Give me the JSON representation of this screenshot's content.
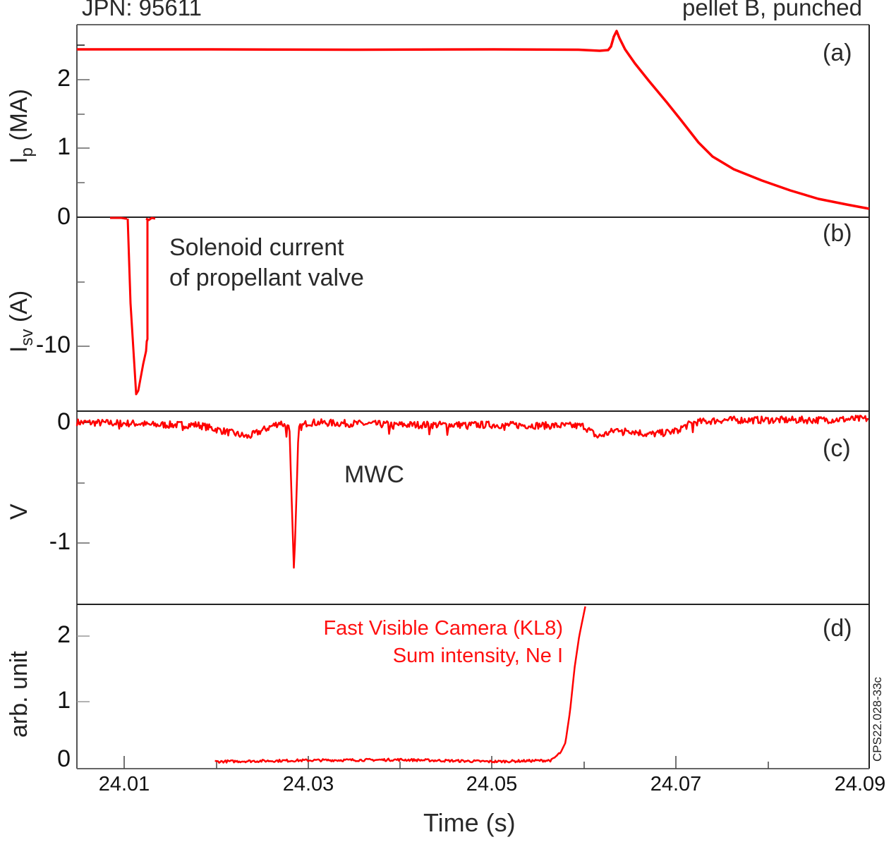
{
  "header": {
    "left": "JPN: 95611",
    "right": "pellet B, punched"
  },
  "figure_id": "CPS22.028-33c",
  "x_axis": {
    "label": "Time (s)",
    "ticks": [
      "24.01",
      "24.03",
      "24.05",
      "24.07",
      "24.09"
    ]
  },
  "panels": [
    {
      "id": "a",
      "tag": "(a)",
      "ylabel_main": "I",
      "ylabel_sub": "p",
      "ylabel_unit": " (MA)",
      "yticks": [
        "2",
        "1",
        "0"
      ]
    },
    {
      "id": "b",
      "tag": "(b)",
      "ylabel_main": "I",
      "ylabel_sub": "sv",
      "ylabel_unit": " (A)",
      "yticks": [
        "0",
        "-10"
      ],
      "annotation": [
        "Solenoid current",
        "of propellant valve"
      ]
    },
    {
      "id": "c",
      "tag": "(c)",
      "ylabel_main": "V",
      "yticks": [
        "0",
        "-1"
      ],
      "annotation": [
        "MWC"
      ]
    },
    {
      "id": "d",
      "tag": "(d)",
      "ylabel_main": "arb. unit",
      "yticks": [
        "2",
        "1",
        "0"
      ],
      "annotation": [
        "Fast Visible Camera (KL8)",
        "Sum intensity, Ne I"
      ]
    }
  ],
  "colors": {
    "trace": "#ff0000",
    "axis": "#555555",
    "text": "#222222"
  },
  "chart_data": [
    {
      "type": "line",
      "title": "(a)",
      "xlabel": "Time (s)",
      "ylabel": "Ip (MA)",
      "xlim": [
        24.005,
        24.091
      ],
      "ylim": [
        0,
        2.7
      ],
      "yticks": [
        0,
        1,
        2
      ],
      "series": [
        {
          "name": "Ip",
          "x": [
            24.005,
            24.02,
            24.04,
            24.055,
            24.0595,
            24.0605,
            24.0625,
            24.0635,
            24.065,
            24.068,
            24.072,
            24.075,
            24.078,
            24.082,
            24.086,
            24.091
          ],
          "y": [
            2.45,
            2.45,
            2.45,
            2.45,
            2.45,
            2.43,
            2.44,
            2.72,
            2.45,
            2.0,
            1.45,
            1.0,
            0.75,
            0.55,
            0.38,
            0.14
          ]
        }
      ]
    },
    {
      "type": "line",
      "title": "(b)",
      "annotation": "Solenoid current of propellant valve",
      "xlabel": "Time (s)",
      "ylabel": "Isv (A)",
      "xlim": [
        24.005,
        24.091
      ],
      "ylim": [
        -15,
        0
      ],
      "yticks": [
        0,
        -10
      ],
      "series": [
        {
          "name": "Isv",
          "x": [
            24.0086,
            24.0102,
            24.0105,
            24.0112,
            24.0115,
            24.0122,
            24.0124,
            24.0125,
            24.0131
          ],
          "y": [
            0,
            0,
            -3,
            -13.7,
            -13.2,
            -9.7,
            -9.7,
            0,
            0
          ]
        }
      ]
    },
    {
      "type": "line",
      "title": "(c)",
      "annotation": "MWC",
      "xlabel": "Time (s)",
      "ylabel": "V",
      "xlim": [
        24.005,
        24.091
      ],
      "ylim": [
        -1.5,
        0.1
      ],
      "yticks": [
        0,
        -1
      ],
      "series": [
        {
          "name": "MWC",
          "x": [
            24.005,
            24.012,
            24.0125,
            24.018,
            24.0235,
            24.027,
            24.028,
            24.0285,
            24.029,
            24.03,
            24.04,
            24.05,
            24.06,
            24.0615,
            24.064,
            24.067,
            24.0695,
            24.072,
            24.075,
            24.085,
            24.091
          ],
          "y": [
            0.0,
            -0.01,
            -0.02,
            -0.02,
            -0.12,
            0.0,
            -0.05,
            -1.25,
            -0.05,
            0.0,
            -0.02,
            -0.02,
            -0.03,
            -0.12,
            -0.05,
            -0.1,
            -0.08,
            0.0,
            0.02,
            0.02,
            0.03
          ]
        }
      ]
    },
    {
      "type": "line",
      "title": "(d)",
      "annotation": "Fast Visible Camera (KL8) Sum intensity, Ne I",
      "xlabel": "Time (s)",
      "ylabel": "arb. unit",
      "xlim": [
        24.005,
        24.091
      ],
      "ylim": [
        -0.05,
        2.5
      ],
      "yticks": [
        0,
        1,
        2
      ],
      "series": [
        {
          "name": "Sum intensity, Ne I",
          "x": [
            24.0199,
            24.03,
            24.04,
            24.05,
            24.0565,
            24.0575,
            24.058,
            24.0585,
            24.059,
            24.0595,
            24.0602
          ],
          "y": [
            0.0,
            0.02,
            0.03,
            0.0,
            0.02,
            0.15,
            0.3,
            0.8,
            1.5,
            2.0,
            2.5
          ]
        }
      ]
    }
  ]
}
